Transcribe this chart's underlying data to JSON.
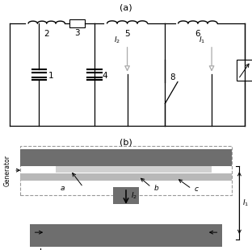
{
  "title_a": "(a)",
  "title_b": "(b)",
  "bg_color": "#ffffff",
  "lc": "#000000",
  "gray_dark": "#6e6e6e",
  "gray_mid": "#999999",
  "gray_light": "#bbbbbb",
  "gray_vlight": "#d0d0d0",
  "dashed_color": "#999999"
}
